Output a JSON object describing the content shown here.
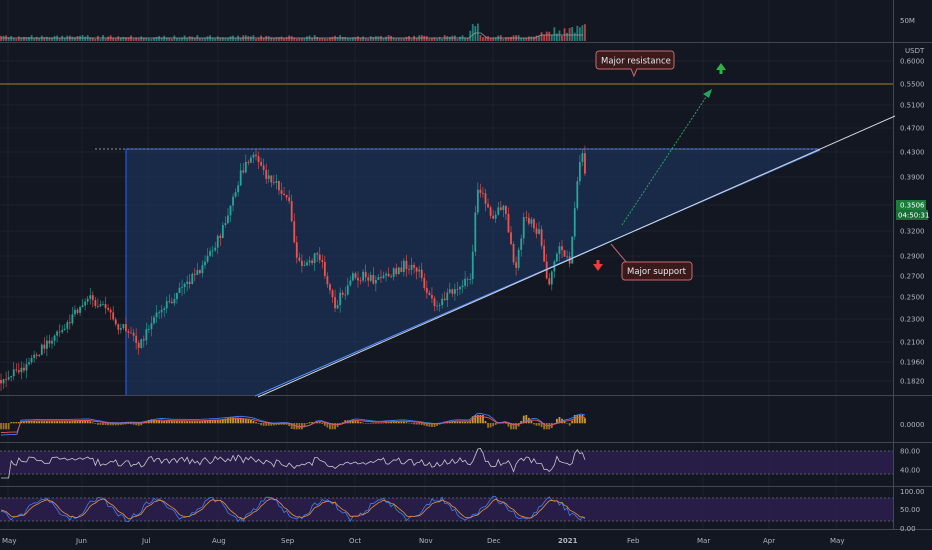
{
  "chart_data": {
    "type": "candlestick",
    "price_axis": {
      "unit": "USDT",
      "ticks": [
        "0.6000",
        "0.5500",
        "0.5100",
        "0.4700",
        "0.4300",
        "0.3900",
        "0.3506",
        "0.3200",
        "0.2900",
        "0.2700",
        "0.2500",
        "0.2300",
        "0.2100",
        "0.1960",
        "0.1820"
      ],
      "current_price": "0.3506",
      "countdown": "04:50:31"
    },
    "volume_axis": {
      "ticks": [
        "50M"
      ]
    },
    "macd_axis": {
      "ticks": [
        "0.0000"
      ]
    },
    "rsi_axis": {
      "ticks": [
        "80.00",
        "40.00"
      ]
    },
    "stoch_axis": {
      "ticks": [
        "100.00",
        "50.00",
        "0.00"
      ]
    },
    "time_axis": {
      "ticks": [
        "May",
        "Jun",
        "Jul",
        "Aug",
        "Sep",
        "Oct",
        "Nov",
        "Dec",
        "2021",
        "Feb",
        "Mar",
        "Apr",
        "May"
      ]
    },
    "annotations": {
      "resistance": "Major resistance",
      "support": "Major support"
    },
    "colors": {
      "background": "#131722",
      "up": "#26a69a",
      "down": "#ef5350",
      "triangle_fill": "#1e3a66",
      "triangle_edge": "#2962ff",
      "rsi_band": "#2a1e4a",
      "resistance_line": "#b8902f",
      "callout_bg": "#3b1a1c",
      "callout_border": "#c46a6a",
      "badge_green": "#1b7d3b"
    }
  }
}
